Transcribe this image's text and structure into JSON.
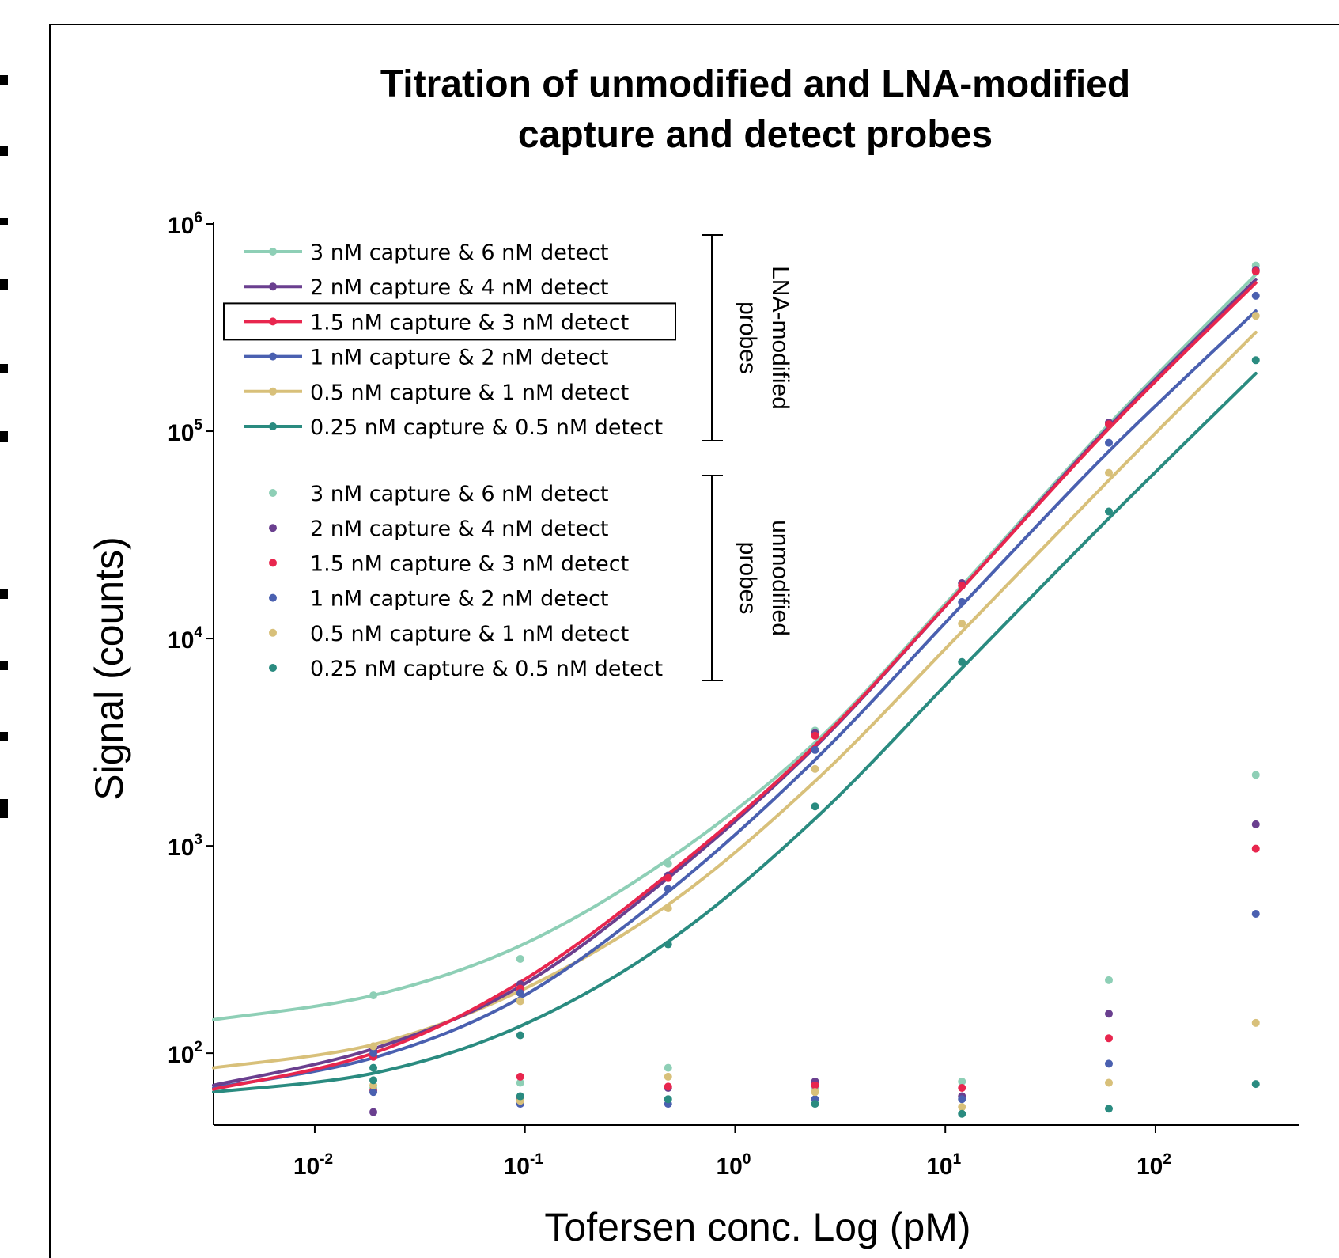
{
  "chart_data": {
    "type": "scatter",
    "title": [
      "Titration of unmodified and LNA-modified",
      "capture and detect probes"
    ],
    "xlabel": "Tofersen conc. Log (pM)",
    "ylabel": "Signal (counts)",
    "x_scale": "log",
    "y_scale": "log",
    "xlim": [
      0.0033,
      480
    ],
    "ylim": [
      45,
      1000000
    ],
    "x_ticks": [
      {
        "base": "10",
        "exp": "-2",
        "value": 0.01
      },
      {
        "base": "10",
        "exp": "-1",
        "value": 0.1
      },
      {
        "base": "10",
        "exp": "0",
        "value": 1
      },
      {
        "base": "10",
        "exp": "1",
        "value": 10
      },
      {
        "base": "10",
        "exp": "2",
        "value": 100
      }
    ],
    "y_ticks": [
      {
        "base": "10",
        "exp": "2",
        "value": 100
      },
      {
        "base": "10",
        "exp": "3",
        "value": 1000
      },
      {
        "base": "10",
        "exp": "4",
        "value": 10000
      },
      {
        "base": "10",
        "exp": "5",
        "value": 100000
      },
      {
        "base": "10",
        "exp": "6",
        "value": 1000000
      }
    ],
    "grid": false,
    "legend_position": "top-left",
    "group_labels": [
      [
        "LNA-modified",
        "probes"
      ],
      [
        "unmodified",
        "probes"
      ]
    ],
    "highlighted_series": "1.5 nM capture & 3 nM detect",
    "x": [
      0.019,
      0.095,
      0.48,
      2.4,
      12,
      60,
      300
    ],
    "lna_series": [
      {
        "name": "3 nM capture & 6 nM detect",
        "color": "#8ecfb6",
        "y": [
          190,
          285,
          820,
          3600,
          18500,
          108000,
          630000
        ],
        "fit_curve": [
          145,
          190,
          330,
          860,
          3150,
          18000,
          108000,
          570000
        ]
      },
      {
        "name": "2 nM capture & 4 nM detect",
        "color": "#6a3f8f",
        "y": [
          103,
          215,
          720,
          3500,
          18500,
          110000,
          600000
        ],
        "fit_curve": [
          70,
          105,
          210,
          700,
          3000,
          17500,
          105000,
          540000
        ]
      },
      {
        "name": "1.5 nM capture & 3 nM detect",
        "color": "#e8264e",
        "y": [
          96,
          205,
          700,
          3400,
          18000,
          108000,
          590000
        ],
        "fit_curve": [
          67,
          100,
          220,
          730,
          3050,
          17500,
          103000,
          520000
        ]
      },
      {
        "name": "1 nM capture & 2 nM detect",
        "color": "#4a60b0",
        "y": [
          100,
          195,
          620,
          2900,
          15000,
          88000,
          450000
        ],
        "fit_curve": [
          68,
          95,
          185,
          600,
          2600,
          14500,
          80000,
          380000
        ]
      },
      {
        "name": "0.5 nM capture & 1 nM detect",
        "color": "#d8c07a",
        "y": [
          108,
          178,
          500,
          2350,
          11800,
          63000,
          360000
        ],
        "fit_curve": [
          85,
          110,
          200,
          520,
          2050,
          10800,
          58000,
          300000
        ]
      },
      {
        "name": "0.25 nM capture & 0.5 nM detect",
        "color": "#2a8b80",
        "y": [
          85,
          122,
          335,
          1550,
          7700,
          41000,
          220000
        ],
        "fit_curve": [
          65,
          80,
          135,
          345,
          1350,
          7200,
          38000,
          190000
        ]
      }
    ],
    "unmodified_series": [
      {
        "name": "3 nM capture & 6 nM detect",
        "color": "#8ecfb6",
        "y": [
          68,
          72,
          85,
          68,
          73,
          225,
          2200
        ]
      },
      {
        "name": "2 nM capture & 4 nM detect",
        "color": "#6a3f8f",
        "y": [
          52,
          60,
          68,
          73,
          62,
          155,
          1270
        ]
      },
      {
        "name": "1.5 nM capture & 3 nM detect",
        "color": "#e8264e",
        "y": [
          66,
          77,
          69,
          70,
          68,
          118,
          970
        ]
      },
      {
        "name": "1 nM capture & 2 nM detect",
        "color": "#4a60b0",
        "y": [
          65,
          57,
          57,
          60,
          60,
          89,
          470
        ]
      },
      {
        "name": "0.5 nM capture & 1 nM detect",
        "color": "#d8c07a",
        "y": [
          70,
          59,
          77,
          65,
          55,
          72,
          140
        ]
      },
      {
        "name": "0.25 nM capture & 0.5 nM detect",
        "color": "#2a8b80",
        "y": [
          74,
          62,
          60,
          57,
          51,
          54,
          71
        ]
      }
    ],
    "fit_x": [
      0.0033,
      0.019,
      0.095,
      0.48,
      2.4,
      12,
      60,
      300
    ]
  }
}
